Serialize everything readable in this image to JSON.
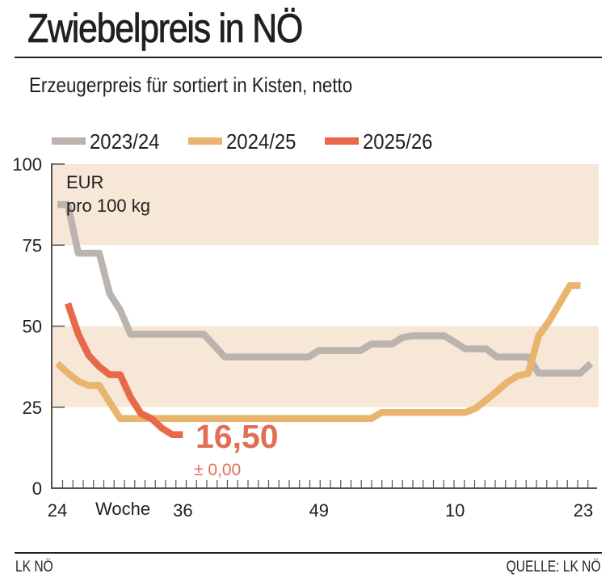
{
  "header": {
    "title": "Zwiebelpreis in NÖ",
    "subtitle": "Erzeugerpreis für sortiert in Kisten, netto"
  },
  "footer": {
    "left": "LK NÖ",
    "right": "QUELLE: LK NÖ"
  },
  "chart_data": {
    "type": "line",
    "title": "Zwiebelpreis in NÖ",
    "subtitle": "Erzeugerpreis für sortiert in Kisten, netto",
    "unit_label_line1": "EUR",
    "unit_label_line2": "pro 100 kg",
    "xlabel": "Woche",
    "ylim": [
      0,
      100
    ],
    "yticks": [
      0,
      25,
      50,
      75,
      100
    ],
    "ytick_labels": [
      "0",
      "25",
      "50",
      "75",
      "100"
    ],
    "x_weeks": [
      24,
      25,
      26,
      27,
      28,
      29,
      30,
      31,
      32,
      33,
      34,
      35,
      36,
      37,
      38,
      39,
      40,
      41,
      42,
      43,
      44,
      45,
      46,
      47,
      48,
      49,
      50,
      51,
      52,
      1,
      2,
      3,
      4,
      5,
      6,
      7,
      8,
      9,
      10,
      11,
      12,
      13,
      14,
      15,
      16,
      17,
      18,
      19,
      20,
      21,
      22,
      23
    ],
    "xtick_labels": [
      {
        "week_index": 0,
        "label": "24"
      },
      {
        "week_index": 12,
        "label": "36"
      },
      {
        "week_index": 25,
        "label": "49"
      },
      {
        "week_index": 38,
        "label": "10"
      },
      {
        "week_index": 51,
        "label": "23"
      }
    ],
    "bands": [
      {
        "from": 75,
        "to": 100,
        "color": "#f7e7d6"
      },
      {
        "from": 25,
        "to": 50,
        "color": "#f7e7d6"
      }
    ],
    "legend_position": "top",
    "series": [
      {
        "name": "2023/24",
        "color": "#bab3ae",
        "values": [
          87.5,
          87.5,
          72.5,
          72.5,
          72.5,
          60,
          55,
          47.5,
          47.5,
          47.5,
          47.5,
          47.5,
          47.5,
          47.5,
          47.5,
          44,
          40.5,
          40.5,
          40.5,
          40.5,
          40.5,
          40.5,
          40.5,
          40.5,
          40.5,
          42.5,
          42.5,
          42.5,
          42.5,
          42.5,
          44.5,
          44.5,
          44.5,
          46.5,
          47,
          47,
          47,
          47,
          45,
          43,
          43,
          43,
          40.5,
          40.5,
          40.5,
          40.5,
          35.5,
          35.5,
          35.5,
          35.5,
          35.5,
          38.5
        ]
      },
      {
        "name": "2024/25",
        "color": "#e8b46e",
        "values": [
          38.5,
          35.5,
          33,
          31.7,
          31.7,
          26.5,
          21.5,
          21.5,
          21.5,
          21.5,
          21.5,
          21.5,
          21.5,
          21.5,
          21.5,
          21.5,
          21.5,
          21.5,
          21.5,
          21.5,
          21.5,
          21.5,
          21.5,
          21.5,
          21.5,
          21.5,
          21.5,
          21.5,
          21.5,
          21.5,
          21.5,
          23.4,
          23.4,
          23.4,
          23.4,
          23.4,
          23.4,
          23.4,
          23.4,
          23.4,
          24.7,
          27.2,
          29.9,
          32.7,
          34.7,
          35.4,
          47,
          51.5,
          57,
          62.5,
          62.5,
          null
        ]
      },
      {
        "name": "2025/26",
        "color": "#e8694a",
        "values": [
          null,
          57,
          47.5,
          41,
          37.5,
          35,
          35,
          28,
          23,
          21.5,
          18.5,
          16.5,
          16.5,
          null,
          null,
          null,
          null,
          null,
          null,
          null,
          null,
          null,
          null,
          null,
          null,
          null,
          null,
          null,
          null,
          null,
          null,
          null,
          null,
          null,
          null,
          null,
          null,
          null,
          null,
          null,
          null,
          null,
          null,
          null,
          null,
          null,
          null,
          null,
          null,
          null,
          null,
          null
        ]
      }
    ],
    "annotations": [
      {
        "series": "2025/26",
        "text": "16,50",
        "color": "#e06f56"
      },
      {
        "series": "2025/26",
        "text": "± 0,00",
        "color": "#e06f56"
      }
    ]
  }
}
